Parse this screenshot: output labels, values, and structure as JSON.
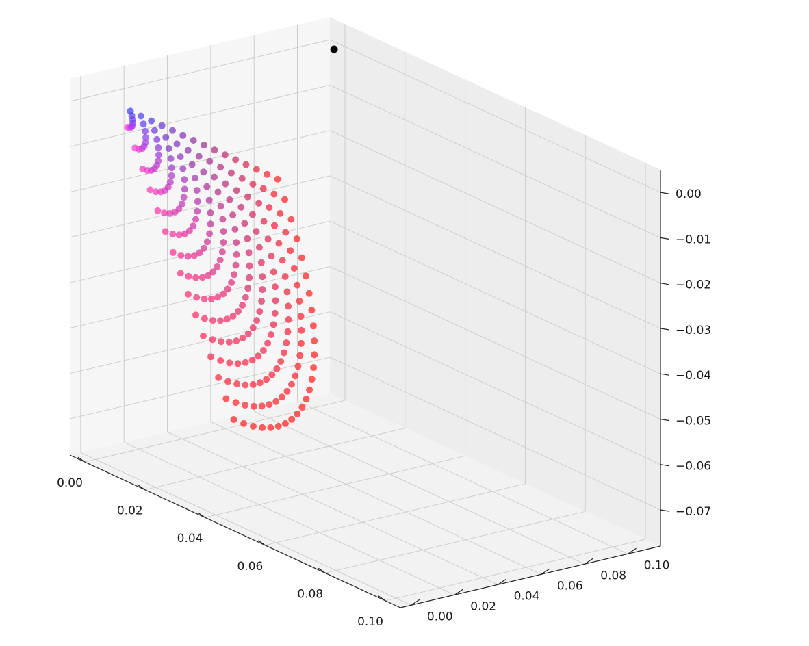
{
  "chart_data": {
    "type": "scatter",
    "projection": "3d",
    "grid": true,
    "title": "",
    "xlabel": "",
    "ylabel": "",
    "zlabel": "",
    "xlim": [
      -0.005,
      0.105
    ],
    "ylim": [
      -0.005,
      0.115
    ],
    "zlim": [
      -0.078,
      0.005
    ],
    "x_ticks": [
      0.0,
      0.02,
      0.04,
      0.06,
      0.08,
      0.1
    ],
    "x_tick_labels": [
      "0.00",
      "0.02",
      "0.04",
      "0.06",
      "0.08",
      "0.10"
    ],
    "y_ticks": [
      0.0,
      0.02,
      0.04,
      0.06,
      0.08,
      0.1
    ],
    "y_tick_labels": [
      "0.00",
      "0.02",
      "0.04",
      "0.06",
      "0.08",
      "0.10"
    ],
    "z_ticks": [
      0.0,
      -0.01,
      -0.02,
      -0.03,
      -0.04,
      -0.05,
      -0.06,
      -0.07
    ],
    "z_tick_labels": [
      "0.00",
      "−0.01",
      "−0.02",
      "−0.03",
      "−0.04",
      "−0.05",
      "−0.06",
      "−0.07"
    ],
    "series": [
      {
        "marker": "o",
        "points": [
          [
            0.0,
            0.11,
            0.0
          ]
        ],
        "color": "#000000"
      },
      {
        "marker": "o",
        "grid_description": "quarter-circle arcs of radius r = 0.005*k (k=1..15) centred at x=0.003, y=0.007, z=0; for each angle a in 0..90 deg: x = 0.003 + 0.7*r*cos(a), y = 0.007 + 0.7*r*sin(a), z = -r*sin(a)",
        "arc_count": 15,
        "arc_radius_step": 0.005,
        "arc_center": [
          0.003,
          0.007,
          0.0
        ],
        "color_start": "#4040ff",
        "color_mid": "#ff40e0",
        "color_end": "#ff2020"
      }
    ]
  }
}
